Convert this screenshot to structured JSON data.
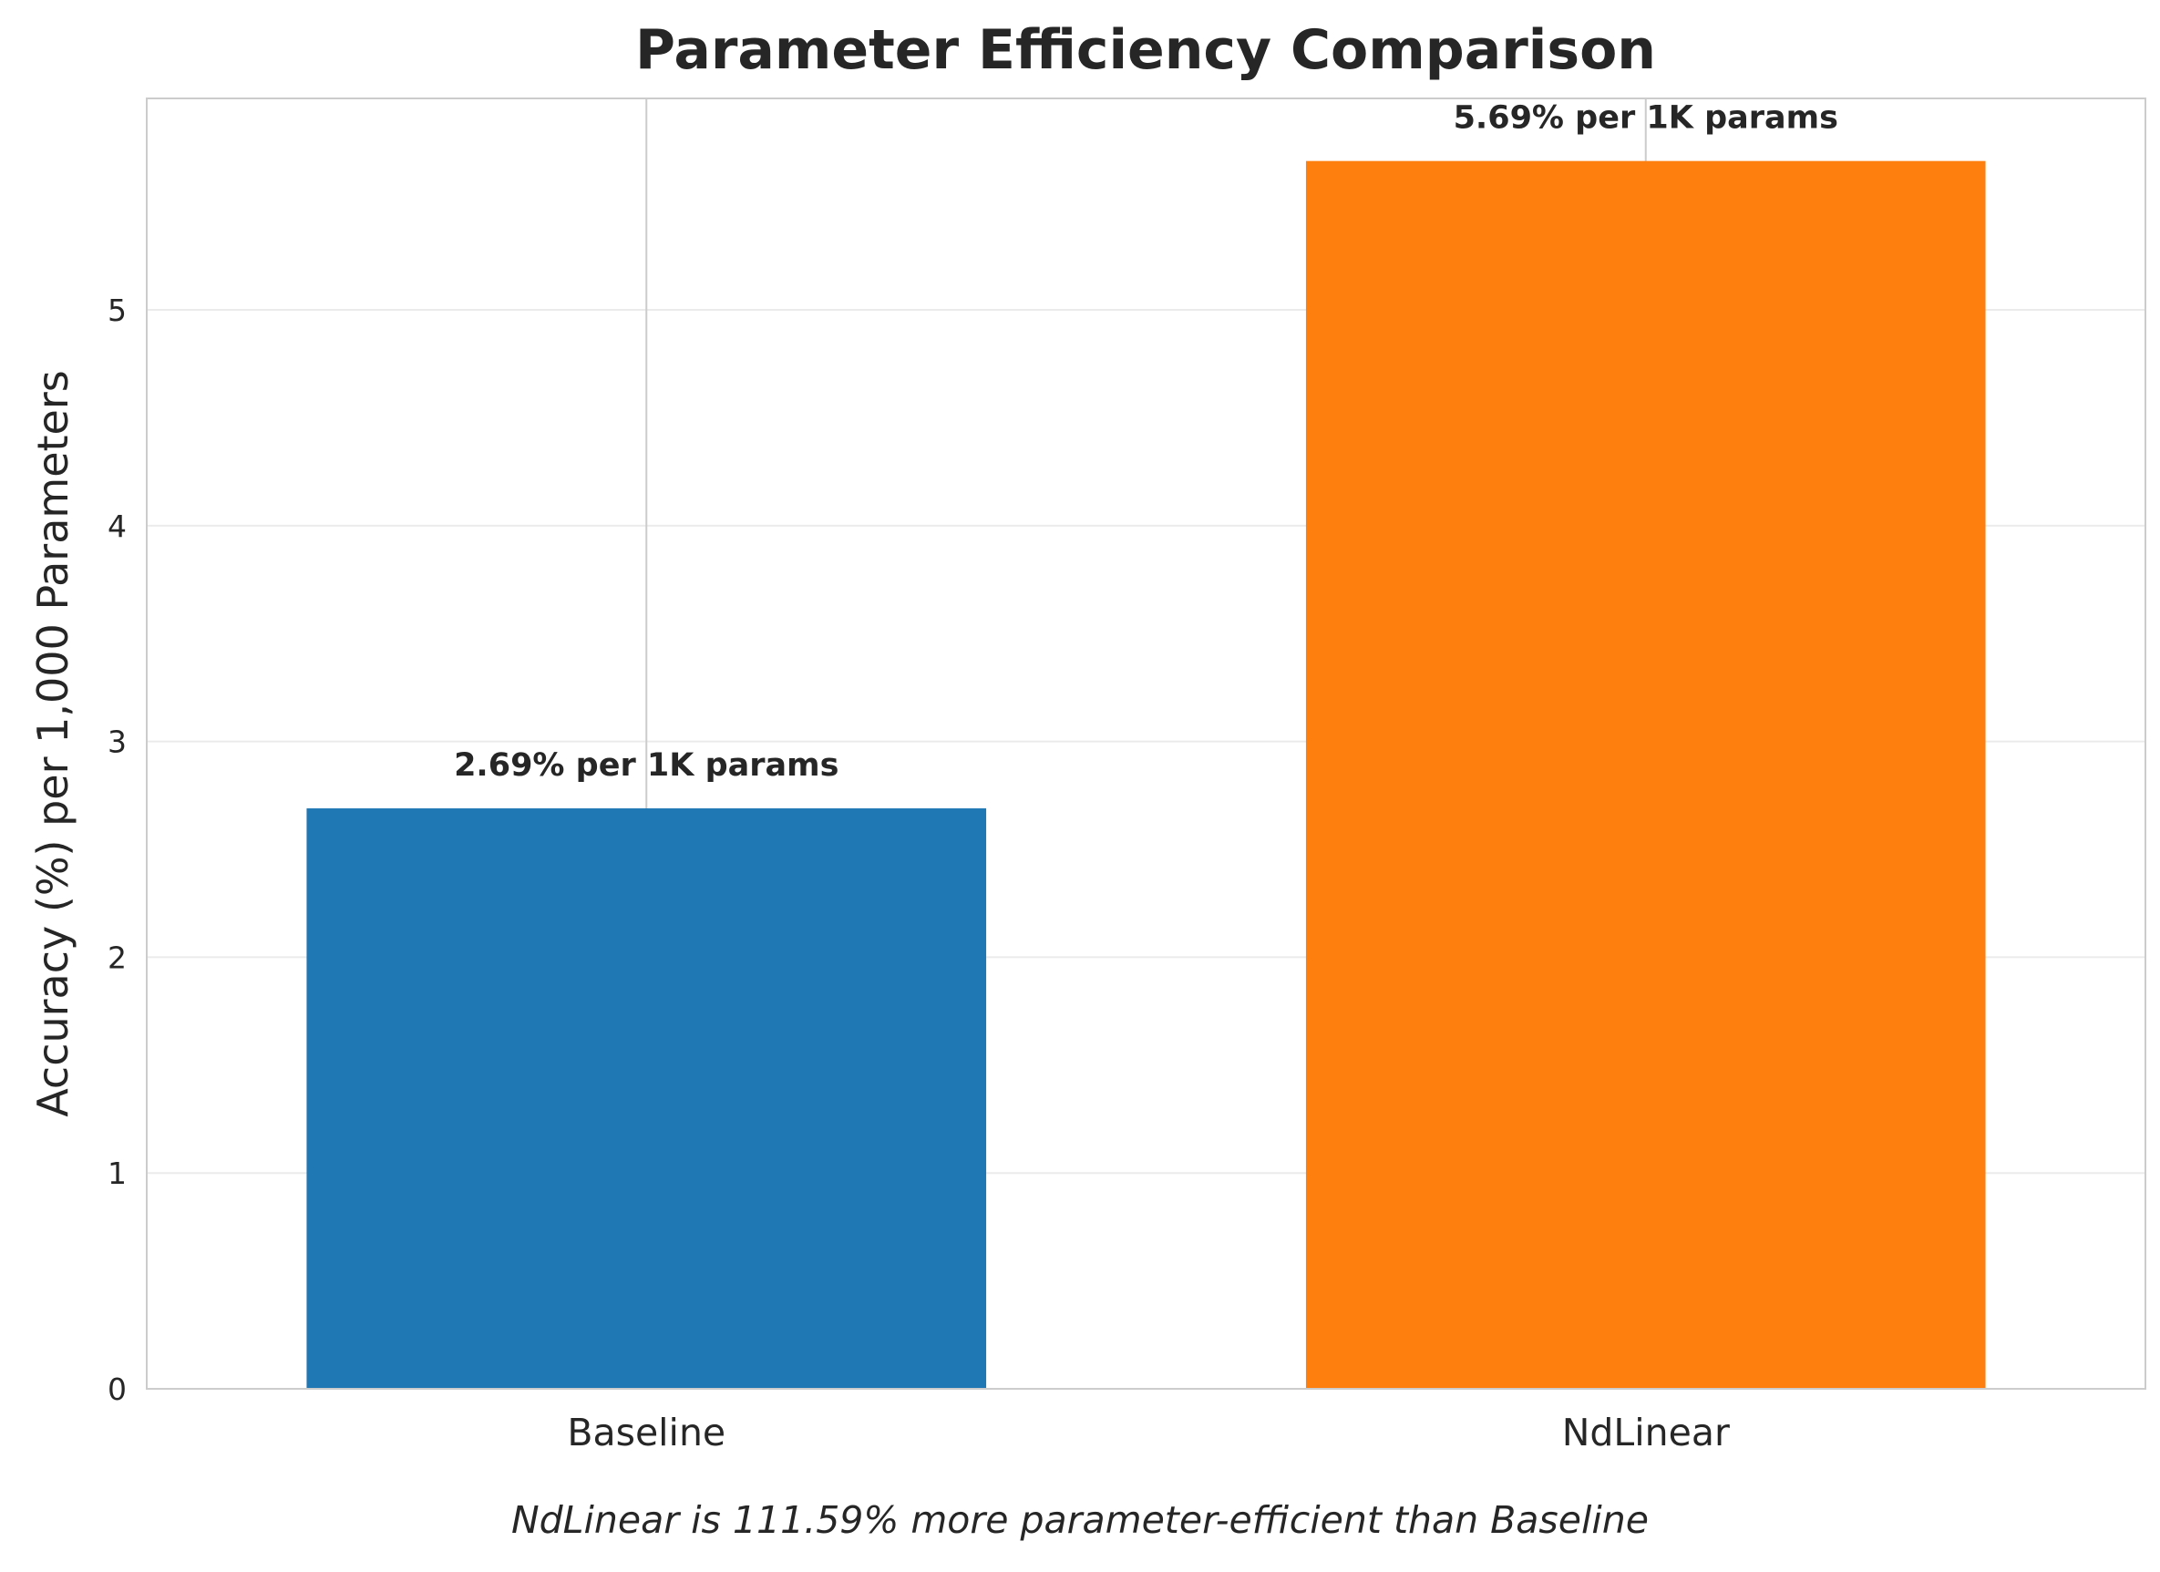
{
  "chart_data": {
    "type": "bar",
    "title": "Parameter Efficiency Comparison",
    "xlabel": "",
    "ylabel": "Accuracy (%) per 1,000 Parameters",
    "categories": [
      "Baseline",
      "NdLinear"
    ],
    "values": [
      2.69,
      5.69
    ],
    "value_labels": [
      "2.69% per 1K params",
      "5.69% per 1K params"
    ],
    "colors": [
      "#1f77b4",
      "#ff7f0e"
    ],
    "ylim": [
      0,
      5.98
    ],
    "yticks": [
      0,
      1,
      2,
      3,
      4,
      5
    ],
    "ytick_labels": [
      "0",
      "1",
      "2",
      "3",
      "4",
      "5"
    ],
    "grid": true,
    "annotation": "NdLinear is 111.59% more parameter-efficient than Baseline"
  }
}
